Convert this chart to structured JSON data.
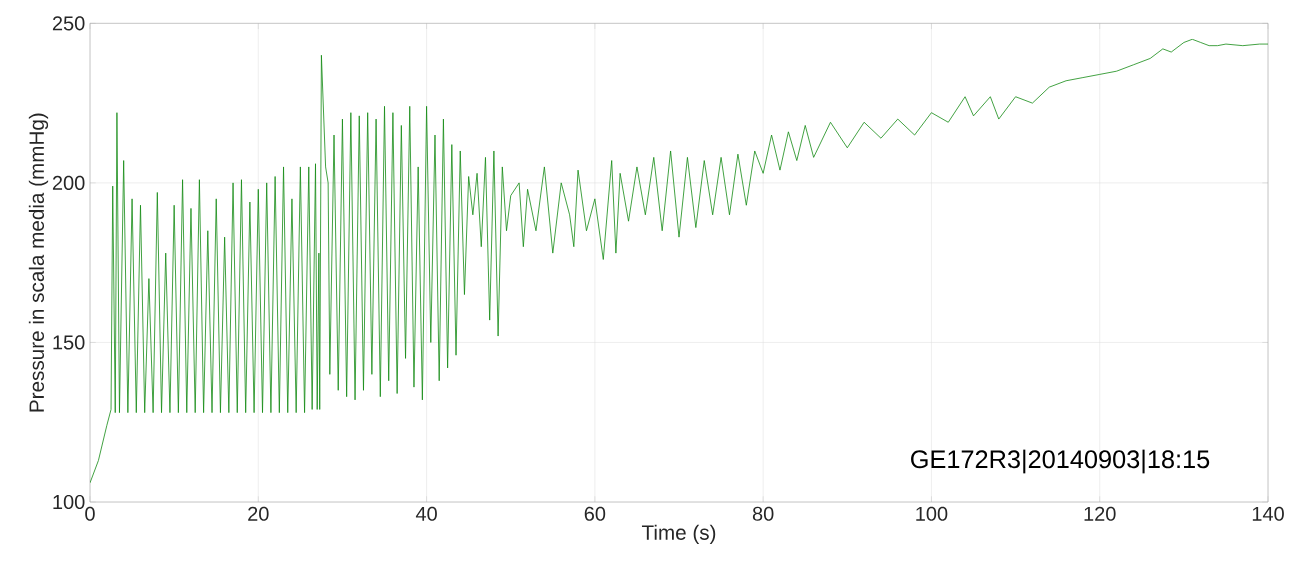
{
  "chart_data": {
    "type": "line",
    "xlabel": "Time (s)",
    "ylabel": "Pressure in scala media (mmHg)",
    "x": [
      0,
      1,
      2,
      2.5,
      2.7,
      3.0,
      3.2,
      3.5,
      4.0,
      4.5,
      5.0,
      5.5,
      6.0,
      6.5,
      7.0,
      7.5,
      8.0,
      8.5,
      9.0,
      9.5,
      10.0,
      10.5,
      11.0,
      11.5,
      12.0,
      12.5,
      13.0,
      13.5,
      14.0,
      14.5,
      15.0,
      15.5,
      16.0,
      16.5,
      17.0,
      17.5,
      18.0,
      18.5,
      19.0,
      19.5,
      20.0,
      20.5,
      21.0,
      21.5,
      22.0,
      22.5,
      23.0,
      23.5,
      24.0,
      24.5,
      25.0,
      25.5,
      26.0,
      26.4,
      26.8,
      27.0,
      27.2,
      27.3,
      27.5,
      28.0,
      28.3,
      28.5,
      29.0,
      29.5,
      30.0,
      30.5,
      31.0,
      31.5,
      32.0,
      32.5,
      33.0,
      33.5,
      34.0,
      34.5,
      35.0,
      35.5,
      36.0,
      36.5,
      37.0,
      37.5,
      38.0,
      38.5,
      39.0,
      39.5,
      40.0,
      40.5,
      41.0,
      41.5,
      42.0,
      42.5,
      43.0,
      43.5,
      44.0,
      44.5,
      45.0,
      45.5,
      46.0,
      46.5,
      47.0,
      47.5,
      48.0,
      48.5,
      49.0,
      49.5,
      50.0,
      51.0,
      51.5,
      52.0,
      53.0,
      54.0,
      55.0,
      56.0,
      57.0,
      57.5,
      58.0,
      59.0,
      60.0,
      61.0,
      62.0,
      62.5,
      63.0,
      64.0,
      65.0,
      66.0,
      67.0,
      68.0,
      69.0,
      70.0,
      71.0,
      72.0,
      73.0,
      74.0,
      75.0,
      76.0,
      77.0,
      78.0,
      79.0,
      80.0,
      81.0,
      82.0,
      83.0,
      84.0,
      85.0,
      86.0,
      88.0,
      90.0,
      92.0,
      94.0,
      96.0,
      98.0,
      100.0,
      102.0,
      104.0,
      105.0,
      107.0,
      108.0,
      110.0,
      112.0,
      114.0,
      116.0,
      118.0,
      120.0,
      122.0,
      124.0,
      126.0,
      127.5,
      128.5,
      130.0,
      131.0,
      132.0,
      133.0,
      134.0,
      135.0,
      137.0,
      139.0,
      140.0
    ],
    "values": [
      106,
      113,
      124,
      129,
      199,
      128,
      222,
      128,
      207,
      128,
      195,
      128,
      193,
      128,
      170,
      128,
      197,
      128,
      178,
      128,
      193,
      128,
      201,
      128,
      192,
      128,
      201,
      128,
      185,
      128,
      195,
      128,
      183,
      128,
      200,
      128,
      201,
      128,
      194,
      128,
      198,
      128,
      200,
      128,
      202,
      128,
      205,
      128,
      195,
      128,
      205,
      128,
      205,
      129,
      206,
      129,
      178,
      129,
      240,
      205,
      200,
      140,
      215,
      135,
      220,
      133,
      222,
      132,
      221,
      135,
      222,
      140,
      220,
      133,
      224,
      138,
      222,
      134,
      218,
      145,
      224,
      136,
      205,
      132,
      224,
      150,
      215,
      138,
      220,
      142,
      212,
      146,
      210,
      165,
      202,
      190,
      203,
      180,
      208,
      157,
      210,
      152,
      205,
      185,
      196,
      200,
      180,
      198,
      185,
      205,
      178,
      200,
      190,
      180,
      204,
      185,
      195,
      176,
      207,
      178,
      203,
      188,
      205,
      190,
      208,
      185,
      210,
      183,
      208,
      186,
      207,
      190,
      208,
      190,
      209,
      193,
      210,
      203,
      215,
      204,
      216,
      207,
      218,
      208,
      219,
      211,
      219,
      214,
      220,
      215,
      222,
      219,
      227,
      221,
      227,
      220,
      227,
      225,
      230,
      232,
      233,
      234,
      235,
      237,
      239,
      242,
      241,
      244,
      245,
      244,
      243,
      243,
      243.5,
      243,
      243.5,
      243.5
    ],
    "color": "#138a13",
    "xlim": [
      0,
      140
    ],
    "ylim": [
      100,
      250
    ],
    "xticks": [
      0,
      20,
      40,
      60,
      80,
      100,
      120,
      140
    ],
    "yticks": [
      100,
      150,
      200,
      250
    ],
    "grid": true,
    "annotations": [
      "GE172R3|20140903|18:15"
    ]
  }
}
